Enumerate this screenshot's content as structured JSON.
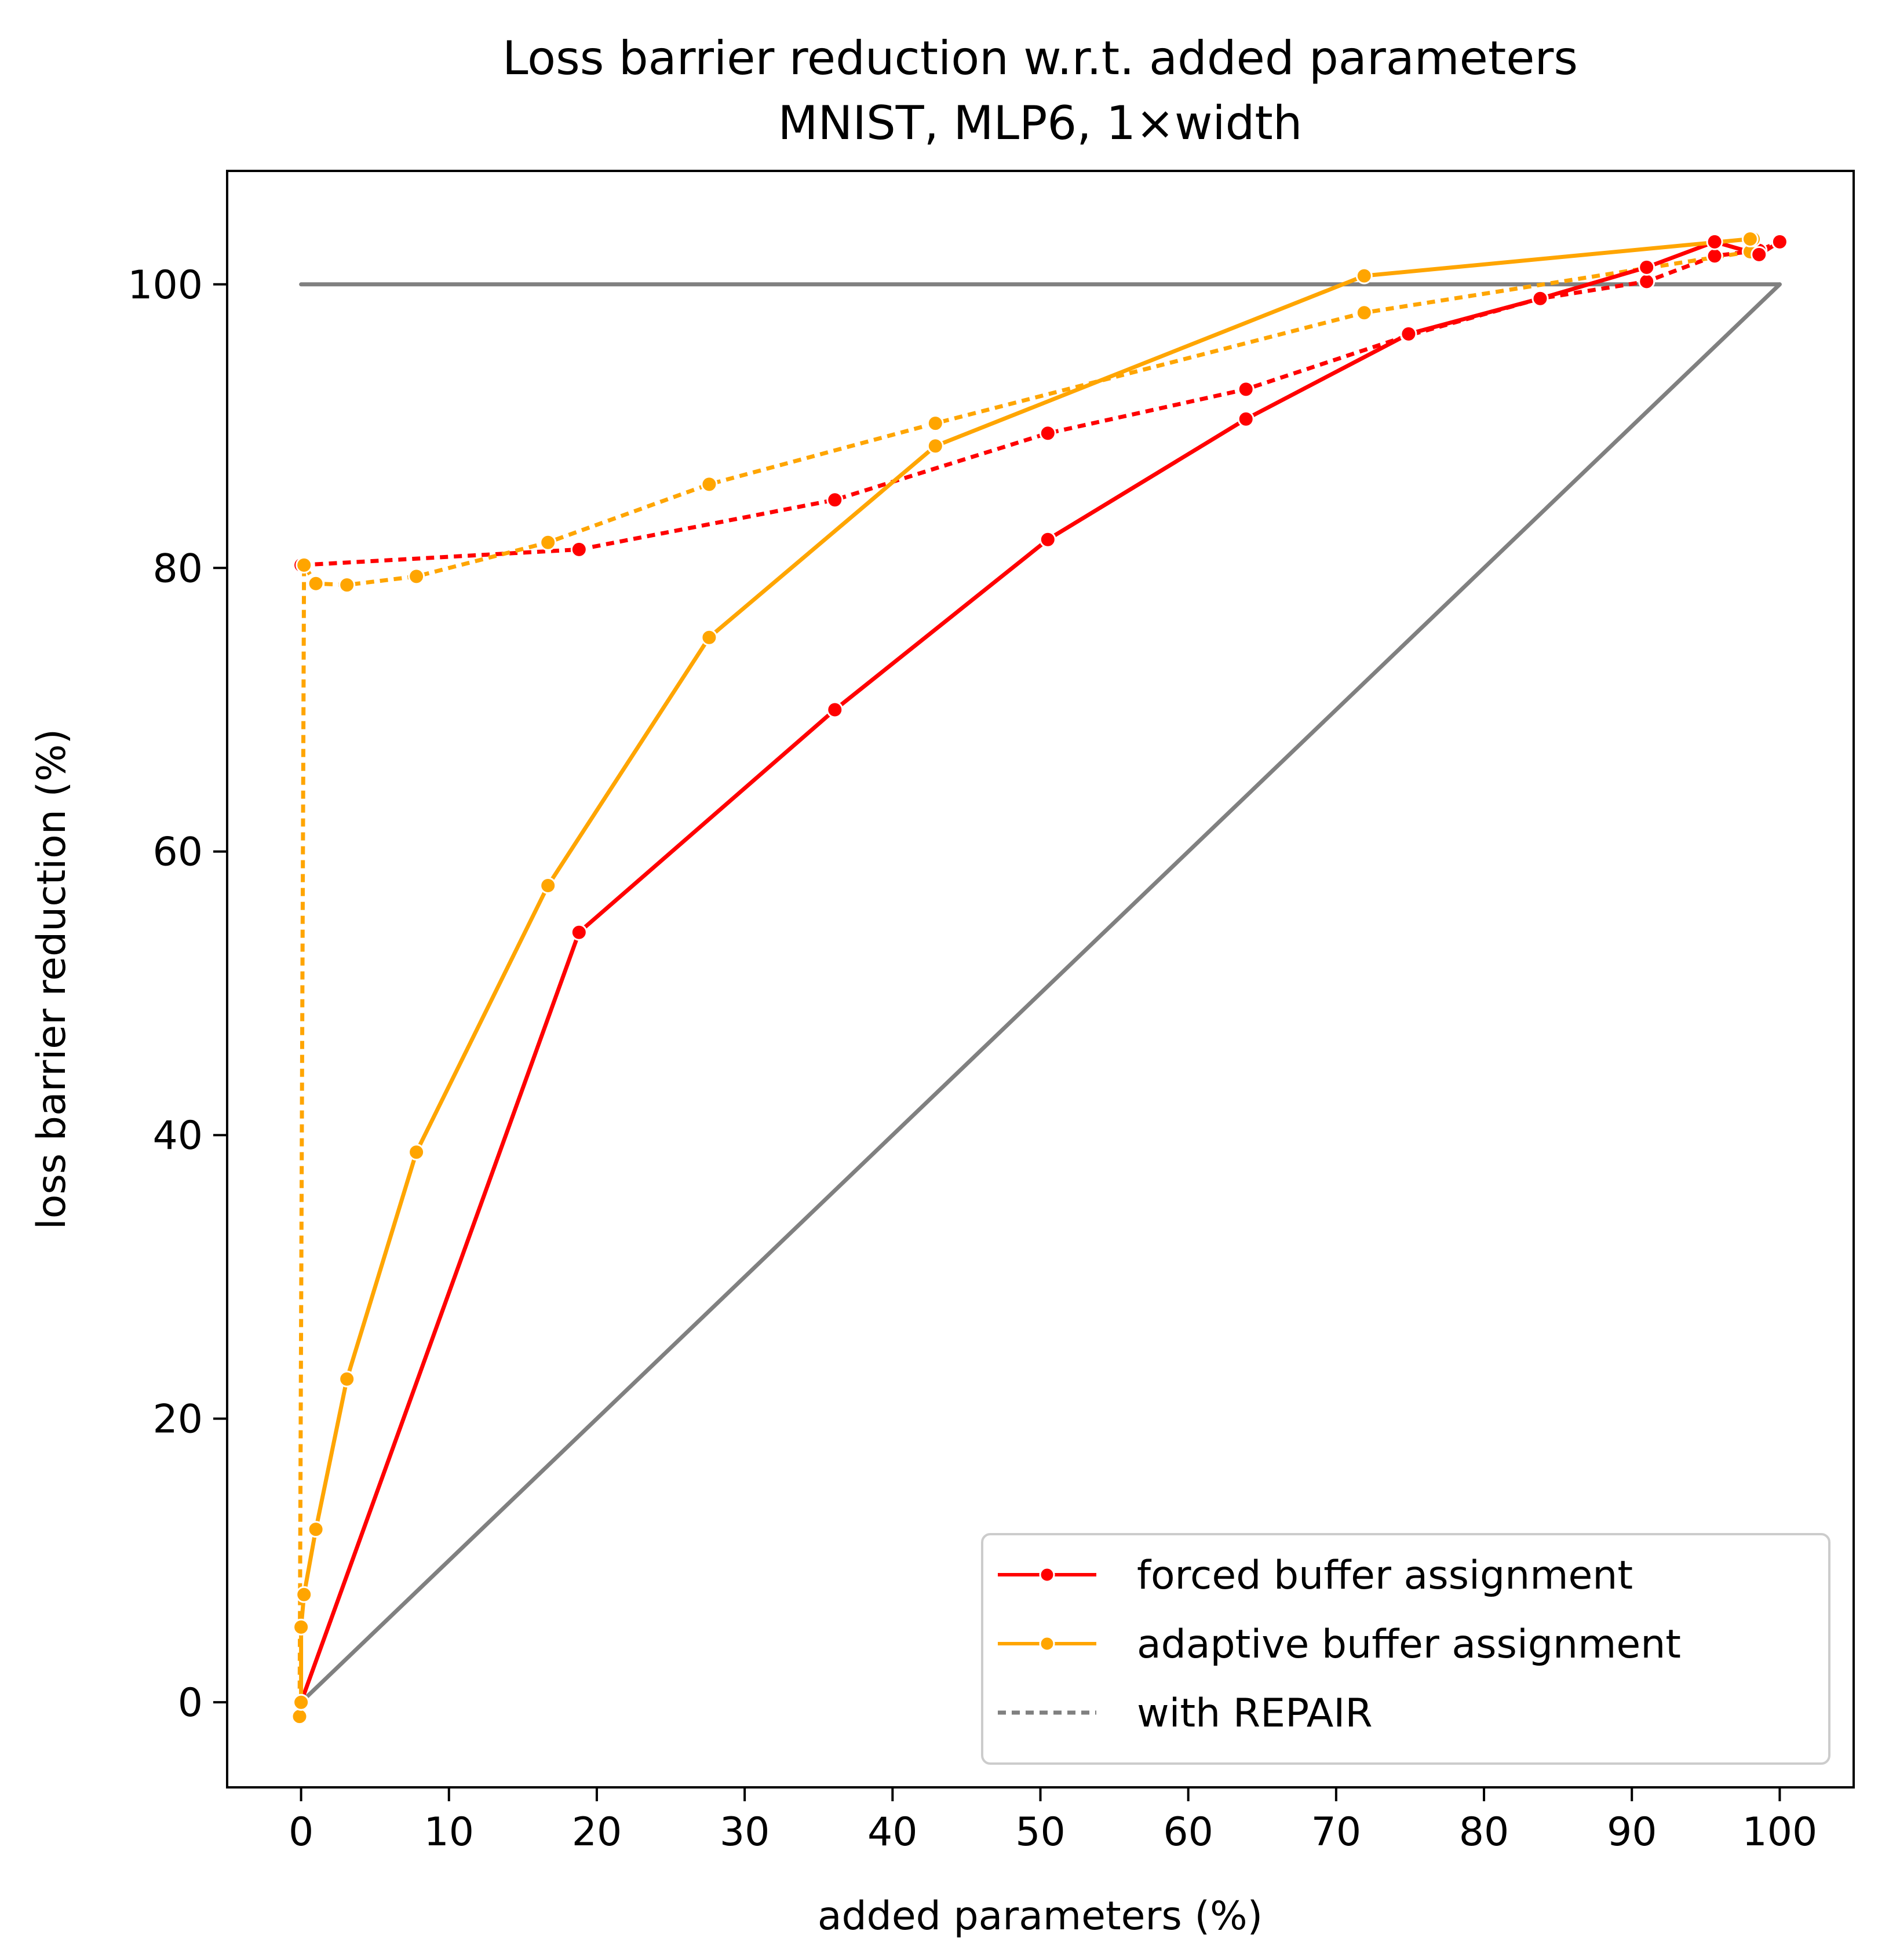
{
  "chart_data": {
    "type": "line",
    "title": "Loss barrier reduction w.r.t. added parameters",
    "subtitle": "MNIST, MLP6, 1×width",
    "xlabel": "added parameters (%)",
    "ylabel": "loss barrier reduction (%)",
    "xlim": [
      -5,
      105
    ],
    "ylim": [
      -6,
      108
    ],
    "xticks": [
      0,
      10,
      20,
      30,
      40,
      50,
      60,
      70,
      80,
      90,
      100
    ],
    "yticks": [
      0,
      20,
      40,
      60,
      80,
      100
    ],
    "grid": false,
    "legend": {
      "position": "bottom-right",
      "entries": [
        {
          "label": "forced buffer assignment",
          "color": "#ff0000",
          "style": "solid-marker"
        },
        {
          "label": "adaptive buffer assignment",
          "color": "#ffa500",
          "style": "solid-marker"
        },
        {
          "label": "with REPAIR",
          "color": "#808080",
          "style": "dotted"
        }
      ]
    },
    "series": [
      {
        "name": "forced buffer assignment",
        "color": "#ff0000",
        "dash": "solid",
        "markers": true,
        "x": [
          0,
          18.8,
          36.1,
          50.5,
          63.9,
          74.9,
          83.8,
          91.0,
          95.6,
          98.6,
          100
        ],
        "y": [
          0,
          54.3,
          70.0,
          82.0,
          90.5,
          96.5,
          99.0,
          101.2,
          103.0,
          102.1,
          103.0
        ]
      },
      {
        "name": "adaptive buffer assignment",
        "color": "#ffa500",
        "dash": "solid",
        "markers": true,
        "x": [
          0,
          0,
          0.2,
          1.0,
          3.1,
          7.8,
          16.7,
          27.6,
          42.9,
          71.9,
          98.0
        ],
        "y": [
          0,
          5.3,
          7.6,
          12.2,
          22.8,
          38.8,
          57.6,
          75.1,
          88.6,
          100.6,
          103.2
        ]
      },
      {
        "color": "#ff0000",
        "dash": "dotted",
        "markers": true,
        "x": [
          0,
          18.8,
          36.1,
          50.5,
          63.9,
          74.9,
          83.8,
          91.0,
          95.6,
          98.6,
          100
        ],
        "y": [
          80.2,
          81.3,
          84.8,
          89.5,
          92.6,
          96.4,
          99.0,
          100.2,
          102.0,
          102.4,
          103.0
        ]
      },
      {
        "color": "#ffa500",
        "dash": "dotted",
        "markers": true,
        "x": [
          -0.1,
          0.2,
          1.0,
          3.1,
          7.8,
          16.7,
          27.6,
          42.9,
          71.9,
          98.0,
          98.2
        ],
        "y": [
          -1.0,
          80.2,
          78.9,
          78.8,
          79.4,
          81.8,
          85.9,
          90.2,
          98.0,
          102.3,
          103.2
        ]
      },
      {
        "color": "#808080",
        "dash": "solid",
        "markers": false,
        "x": [
          0,
          100
        ],
        "y": [
          100,
          100
        ]
      },
      {
        "color": "#808080",
        "dash": "solid",
        "markers": false,
        "x": [
          0,
          100
        ],
        "y": [
          0,
          100
        ]
      }
    ]
  }
}
